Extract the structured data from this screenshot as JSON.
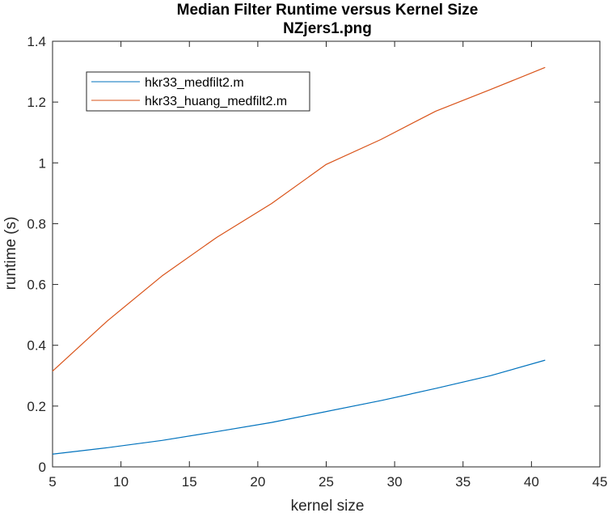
{
  "chart_data": {
    "type": "line",
    "title": "Median Filter Runtime versus Kernel Size",
    "subtitle": "NZjers1.png",
    "xlabel": "kernel size",
    "ylabel": "runtime (s)",
    "xlim": [
      5,
      45
    ],
    "ylim": [
      0,
      1.4
    ],
    "xticks": [
      5,
      10,
      15,
      20,
      25,
      30,
      35,
      40,
      45
    ],
    "yticks": [
      0,
      0.2,
      0.4,
      0.6,
      0.8,
      1,
      1.2,
      1.4
    ],
    "xtick_labels": [
      "5",
      "10",
      "15",
      "20",
      "25",
      "30",
      "35",
      "40",
      "45"
    ],
    "ytick_labels": [
      "0",
      "0.2",
      "0.4",
      "0.6",
      "0.8",
      "1",
      "1.2",
      "1.4"
    ],
    "grid": false,
    "legend_position": "top-left",
    "x": [
      5,
      9,
      13,
      17,
      21,
      25,
      29,
      33,
      37,
      41
    ],
    "series": [
      {
        "name": "hkr33_medfilt2.m",
        "color": "#0072BD",
        "values": [
          0.042,
          0.063,
          0.087,
          0.116,
          0.146,
          0.182,
          0.218,
          0.258,
          0.3,
          0.351
        ]
      },
      {
        "name": "hkr33_huang_medfilt2.m",
        "color": "#D95319",
        "values": [
          0.315,
          0.48,
          0.628,
          0.755,
          0.866,
          0.995,
          1.077,
          1.17,
          1.241,
          1.314
        ]
      }
    ]
  }
}
